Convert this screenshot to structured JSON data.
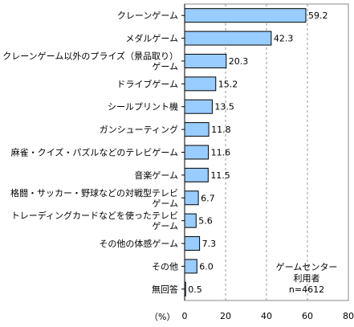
{
  "chart_data": {
    "type": "bar",
    "orientation": "horizontal",
    "categories": [
      [
        "クレーンゲーム"
      ],
      [
        "メダルゲーム"
      ],
      [
        "クレーンゲーム以外のプライズ（景品取り）",
        "ゲーム"
      ],
      [
        "ドライブゲーム"
      ],
      [
        "シールプリント機"
      ],
      [
        "ガンシューティング"
      ],
      [
        "麻雀・クイズ・パズルなどのテレビゲーム"
      ],
      [
        "音楽ゲーム"
      ],
      [
        "格闘・サッカー・野球などの対戦型テレビ",
        "ゲーム"
      ],
      [
        "トレーディングカードなどを使ったテレビ",
        "ゲーム"
      ],
      [
        "その他の体感ゲーム"
      ],
      [
        "その他"
      ],
      [
        "無回答"
      ]
    ],
    "values": [
      59.2,
      42.3,
      20.3,
      15.2,
      13.5,
      11.8,
      11.6,
      11.5,
      6.7,
      5.6,
      7.3,
      6.0,
      0.5
    ],
    "value_labels": [
      "59.2",
      "42.3",
      "20.3",
      "15.2",
      "13.5",
      "11.8",
      "11.6",
      "11.5",
      "6.7",
      "5.6",
      "7.3",
      "6.0",
      "0.5"
    ],
    "xlim": [
      0,
      80
    ],
    "xticks": [
      0,
      20,
      40,
      60,
      80
    ],
    "x_unit_label": "（%）",
    "grid": "vertical-dashed",
    "bar_color": "#99ccff",
    "bar_edge_color": "#000000",
    "annotation": [
      "ゲームセンター",
      "利用者",
      "n=4612"
    ]
  }
}
